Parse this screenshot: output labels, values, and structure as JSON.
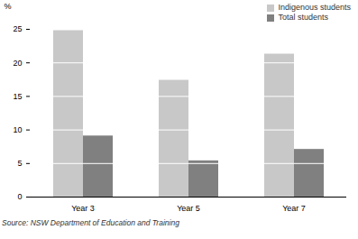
{
  "chart_data": {
    "type": "bar",
    "categories": [
      "Year 3",
      "Year 5",
      "Year 7"
    ],
    "series": [
      {
        "name": "Indigenous students",
        "color": "#c8c8c8",
        "values": [
          24.8,
          17.4,
          21.3
        ]
      },
      {
        "name": "Total students",
        "color": "#808080",
        "values": [
          9.1,
          5.4,
          7.1
        ]
      }
    ],
    "y_label": "%",
    "caption": "Source: NSW Department of Education and Training",
    "ylim": [
      0,
      25
    ],
    "yticks": [
      0,
      5,
      10,
      15,
      20,
      25
    ],
    "grid": true,
    "legend": "top-right"
  }
}
